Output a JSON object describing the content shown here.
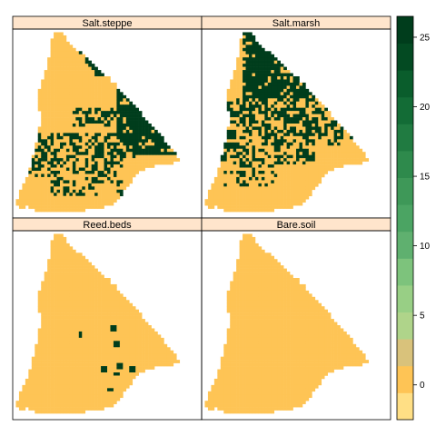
{
  "panels": [
    {
      "title": "Salt.steppe",
      "map": "steppe"
    },
    {
      "title": "Salt.marsh",
      "map": "marsh"
    },
    {
      "title": "Reed.beds",
      "map": "reed"
    },
    {
      "title": "Bare.soil",
      "map": "bare"
    }
  ],
  "colorbar": {
    "ticks": [
      {
        "label": "25",
        "value": 25
      },
      {
        "label": "20",
        "value": 20
      },
      {
        "label": "15",
        "value": 15
      },
      {
        "label": "10",
        "value": 10
      },
      {
        "label": "5",
        "value": 5
      },
      {
        "label": "0",
        "value": 0
      }
    ],
    "range": [
      -2.5,
      26.5
    ],
    "colors": [
      "#FFDF85",
      "#FEC455",
      "#D9C27B",
      "#AFD48A",
      "#98CF85",
      "#7DC37C",
      "#5FB06F",
      "#4BA463",
      "#3E9858",
      "#2E8A4C",
      "#207B41",
      "#136C36",
      "#0A5D2C",
      "#034A22",
      "#003D1C"
    ],
    "palette": "yellow-to-dark-green",
    "strip_color": "#FFE5CC"
  },
  "chart_data": {
    "type": "heatmap",
    "layout": "2x2 panels",
    "panels": [
      "Salt.steppe",
      "Salt.marsh",
      "Reed.beds",
      "Bare.soil"
    ],
    "color_range": [
      -2.5,
      26.5
    ],
    "colorbar_ticks": [
      0,
      5,
      10,
      15,
      20,
      25
    ],
    "approx_fill_values": {
      "Salt.steppe": [
        0,
        25
      ],
      "Salt.marsh": [
        0,
        25
      ],
      "Reed.beds": [
        0,
        25
      ],
      "Bare.soil": [
        1
      ]
    }
  }
}
